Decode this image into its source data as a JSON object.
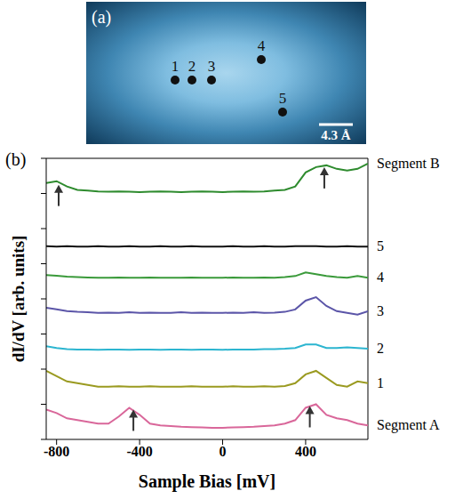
{
  "panel_a": {
    "label": "(a)",
    "points": [
      "1",
      "2",
      "3",
      "4",
      "5"
    ],
    "scale_bar": "4.3 Å"
  },
  "chart_data": {
    "type": "line",
    "panel_label": "(b)",
    "x_label": "Sample Bias [mV]",
    "y_label": "dI/dV [arb. units]",
    "x": [
      -850,
      -800,
      -750,
      -700,
      -650,
      -600,
      -550,
      -500,
      -450,
      -400,
      -350,
      -300,
      -250,
      -200,
      -150,
      -100,
      -50,
      0,
      50,
      100,
      150,
      200,
      250,
      300,
      350,
      400,
      450,
      500,
      550,
      600,
      650,
      700
    ],
    "xlim": [
      -850,
      700
    ],
    "xticks": [
      -800,
      -400,
      0,
      400
    ],
    "ylim": [
      0,
      8
    ],
    "yticks": [
      0,
      1,
      2,
      3,
      4,
      5,
      6,
      7,
      8
    ],
    "tick_labels": "x",
    "series": [
      {
        "name": "Segment B",
        "color": "#2e8b2e",
        "values": [
          7.3,
          7.35,
          7.2,
          7.1,
          7.08,
          7.06,
          7.05,
          7.06,
          7.05,
          7.04,
          7.05,
          7.06,
          7.05,
          7.04,
          7.05,
          7.06,
          7.05,
          7.04,
          7.05,
          7.06,
          7.05,
          7.06,
          7.08,
          7.1,
          7.2,
          7.6,
          7.75,
          7.8,
          7.7,
          7.65,
          7.7,
          7.85
        ]
      },
      {
        "name": "5",
        "color": "#111111",
        "values": [
          5.5,
          5.49,
          5.5,
          5.49,
          5.49,
          5.5,
          5.49,
          5.49,
          5.5,
          5.49,
          5.49,
          5.5,
          5.49,
          5.49,
          5.5,
          5.49,
          5.49,
          5.49,
          5.5,
          5.49,
          5.49,
          5.5,
          5.49,
          5.49,
          5.5,
          5.5,
          5.5,
          5.49,
          5.49,
          5.5,
          5.49,
          5.49
        ]
      },
      {
        "name": "4",
        "color": "#3a9a3a",
        "values": [
          4.68,
          4.66,
          4.63,
          4.62,
          4.61,
          4.6,
          4.6,
          4.61,
          4.6,
          4.6,
          4.61,
          4.6,
          4.6,
          4.6,
          4.61,
          4.6,
          4.6,
          4.6,
          4.61,
          4.6,
          4.6,
          4.61,
          4.6,
          4.62,
          4.65,
          4.75,
          4.7,
          4.65,
          4.62,
          4.6,
          4.65,
          4.6
        ]
      },
      {
        "name": "3",
        "color": "#5b55a8",
        "values": [
          3.75,
          3.7,
          3.65,
          3.63,
          3.62,
          3.6,
          3.61,
          3.6,
          3.62,
          3.6,
          3.61,
          3.6,
          3.6,
          3.62,
          3.6,
          3.61,
          3.6,
          3.6,
          3.61,
          3.6,
          3.62,
          3.6,
          3.61,
          3.63,
          3.7,
          3.95,
          4.05,
          3.8,
          3.65,
          3.6,
          3.55,
          3.65
        ]
      },
      {
        "name": "2",
        "color": "#2cb5d0",
        "values": [
          2.65,
          2.6,
          2.57,
          2.56,
          2.56,
          2.55,
          2.56,
          2.56,
          2.55,
          2.56,
          2.56,
          2.55,
          2.56,
          2.56,
          2.55,
          2.56,
          2.56,
          2.55,
          2.56,
          2.56,
          2.56,
          2.57,
          2.57,
          2.58,
          2.6,
          2.7,
          2.7,
          2.6,
          2.6,
          2.62,
          2.6,
          2.58
        ]
      },
      {
        "name": "1",
        "color": "#9a9a20",
        "values": [
          1.95,
          1.8,
          1.65,
          1.6,
          1.55,
          1.5,
          1.5,
          1.51,
          1.5,
          1.5,
          1.51,
          1.5,
          1.5,
          1.5,
          1.51,
          1.5,
          1.5,
          1.5,
          1.51,
          1.5,
          1.5,
          1.51,
          1.5,
          1.52,
          1.6,
          1.85,
          1.95,
          1.75,
          1.55,
          1.5,
          1.65,
          1.6
        ]
      },
      {
        "name": "Segment A",
        "color": "#d9679a",
        "values": [
          0.85,
          0.75,
          0.6,
          0.55,
          0.5,
          0.45,
          0.45,
          0.65,
          0.9,
          0.7,
          0.45,
          0.4,
          0.38,
          0.36,
          0.35,
          0.34,
          0.33,
          0.33,
          0.34,
          0.35,
          0.36,
          0.38,
          0.4,
          0.45,
          0.55,
          0.9,
          1.0,
          0.7,
          0.6,
          0.55,
          0.45,
          0.4
        ]
      }
    ],
    "arrows": [
      {
        "series": "Segment B",
        "x": -790,
        "y": 7.25
      },
      {
        "series": "Segment B",
        "x": 490,
        "y": 7.75
      },
      {
        "series": "Segment A",
        "x": -430,
        "y": 0.85
      },
      {
        "series": "Segment A",
        "x": 420,
        "y": 0.95
      }
    ]
  }
}
